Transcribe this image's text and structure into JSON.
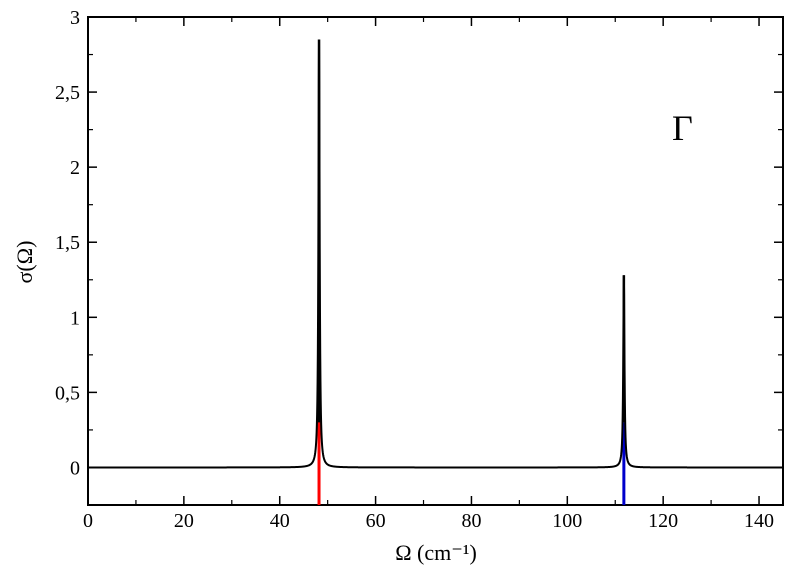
{
  "chart_data": {
    "type": "line",
    "title": "",
    "xlabel": "Ω (cm⁻¹)",
    "ylabel": "σ(Ω)",
    "xlim": [
      0,
      145
    ],
    "ylim": [
      -0.25,
      3
    ],
    "x_ticks": [
      0,
      20,
      40,
      60,
      80,
      100,
      120,
      140
    ],
    "x_tick_labels": [
      "0",
      "20",
      "40",
      "60",
      "80",
      "100",
      "120",
      "140"
    ],
    "y_ticks": [
      0,
      0.5,
      1,
      1.5,
      2,
      2.5,
      3
    ],
    "y_tick_labels": [
      "0",
      "0,5",
      "1",
      "1,5",
      "2",
      "2,5",
      "3"
    ],
    "annotations": [
      {
        "text": "Γ",
        "x": 124,
        "y": 2.18
      }
    ],
    "series": [
      {
        "type": "lorentzian-spectrum",
        "color": "#000000",
        "x_range": [
          0,
          145
        ],
        "baseline": 0,
        "peaks": [
          {
            "x": 48.2,
            "y": 2.85,
            "hwhm": 0.15
          },
          {
            "x": 111.8,
            "y": 1.28,
            "hwhm": 0.15
          }
        ]
      }
    ],
    "markers": [
      {
        "x": 48.2,
        "color": "#ff0000",
        "y_from": -0.25,
        "y_to": 0.6
      },
      {
        "x": 111.8,
        "color": "#0000cc",
        "y_from": -0.25,
        "y_to": 0.3
      }
    ],
    "grid": false,
    "legend": "none"
  }
}
